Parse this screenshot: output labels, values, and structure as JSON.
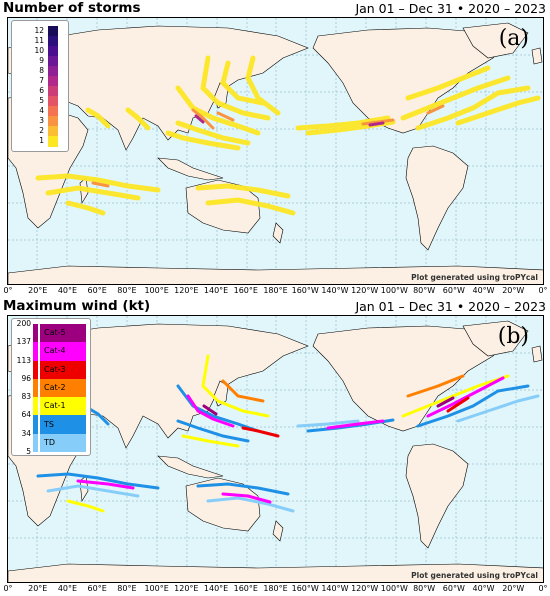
{
  "panel_a": {
    "title": "Number of storms",
    "date_range": "Jan 01 – Dec 31 • 2020 – 2023",
    "label": "(a)",
    "credit": "Plot generated using troPYcal",
    "colorbar": {
      "ticks": [
        "12",
        "11",
        "10",
        "9",
        "8",
        "7",
        "6",
        "5",
        "4",
        "3",
        "2",
        "1"
      ],
      "colors": [
        "#190b57",
        "#2b0f7a",
        "#4a0f8f",
        "#6a1896",
        "#8e1f94",
        "#b0298a",
        "#cc3d78",
        "#e35566",
        "#f27251",
        "#f89441",
        "#fbbd34",
        "#fde725"
      ]
    }
  },
  "panel_b": {
    "title": "Maximum wind (kt)",
    "date_range": "Jan 01 – Dec 31 • 2020 – 2023",
    "label": "(b)",
    "credit": "Plot generated using troPYcal",
    "colorbar": {
      "ticks": [
        "200",
        "137",
        "113",
        "96",
        "83",
        "64",
        "34",
        "5"
      ],
      "categories": [
        "Cat-5",
        "Cat-4",
        "Cat-3",
        "Cat-2",
        "Cat-1",
        "TS",
        "TD"
      ],
      "colors": [
        "#9c007f",
        "#ff00ff",
        "#ee0000",
        "#ff8000",
        "#ffff00",
        "#1e90e6",
        "#87cdfa"
      ]
    }
  },
  "longitude_ticks": [
    "0°",
    "20°E",
    "40°E",
    "60°E",
    "80°E",
    "100°E",
    "120°E",
    "140°E",
    "160°E",
    "180°E",
    "160°W",
    "140°W",
    "120°W",
    "100°W",
    "80°W",
    "60°W",
    "40°W",
    "20°W",
    "0°"
  ],
  "map_colors": {
    "ocean": "#e1f6fb",
    "land": "#fbf0e3",
    "border": "#000000",
    "grid": "#7aa8b8"
  }
}
